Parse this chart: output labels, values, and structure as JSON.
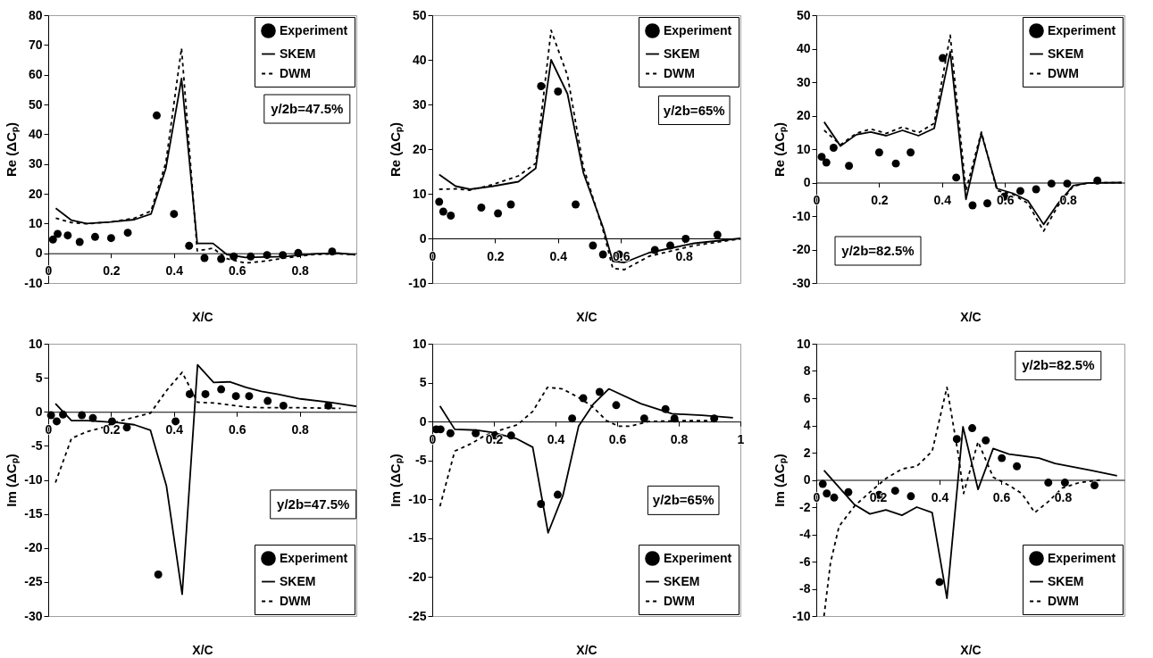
{
  "chart_data": [
    {
      "type": "line",
      "xlabel": "X/C",
      "ylabel": "Re (ΔCₚ)",
      "annotations": [
        "y/2b=47.5%"
      ],
      "xlim": [
        0,
        0.98
      ],
      "xticks": [
        0,
        0.2,
        0.4,
        0.6,
        0.8
      ],
      "ylim": [
        -10,
        80
      ],
      "yticks": [
        -10,
        0,
        10,
        20,
        30,
        40,
        50,
        60,
        70,
        80
      ],
      "legend": "top right",
      "series": [
        {
          "name": "Experiment",
          "type": "scatter",
          "marker": "circle",
          "color": "#000000",
          "x": [
            0.015,
            0.03,
            0.062,
            0.1,
            0.149,
            0.2,
            0.253,
            0.345,
            0.4,
            0.448,
            0.497,
            0.55,
            0.59,
            0.644,
            0.696,
            0.746,
            0.795,
            0.903
          ],
          "values": [
            4.6,
            6.5,
            6.0,
            3.8,
            5.5,
            5.1,
            6.9,
            46.3,
            13.2,
            2.5,
            -1.6,
            -1.9,
            -1.1,
            -1.1,
            -0.6,
            -0.6,
            0.1,
            0.6
          ]
        },
        {
          "name": "SKEM",
          "type": "line",
          "line_style": "solid",
          "color": "#000000",
          "x": [
            0.024,
            0.074,
            0.122,
            0.198,
            0.274,
            0.327,
            0.374,
            0.424,
            0.474,
            0.524,
            0.568,
            0.627,
            0.75,
            0.846,
            0.922,
            0.976
          ],
          "values": [
            15.1,
            11.1,
            10.0,
            10.5,
            11.3,
            13.2,
            28.5,
            58.7,
            3.3,
            3.3,
            -0.4,
            -1.4,
            -1.1,
            -0.2,
            0.1,
            -0.5
          ]
        },
        {
          "name": "DWM",
          "type": "line",
          "line_style": "dashed",
          "color": "#000000",
          "x": [
            0.024,
            0.074,
            0.122,
            0.198,
            0.274,
            0.327,
            0.374,
            0.424,
            0.474,
            0.524,
            0.568,
            0.627,
            0.693,
            0.75,
            0.846,
            0.922,
            0.976
          ],
          "values": [
            11.8,
            10.3,
            9.9,
            10.5,
            11.8,
            14.2,
            30.4,
            68.9,
            0.8,
            1.7,
            -1.8,
            -3.3,
            -2.6,
            -1.6,
            -0.4,
            -0.2,
            -0.5
          ]
        }
      ]
    },
    {
      "type": "line",
      "xlabel": "X/C",
      "ylabel": "Re (ΔCₚ)",
      "annotations": [
        "y/2b=65%"
      ],
      "xlim": [
        0,
        0.98
      ],
      "xticks": [
        0,
        0.2,
        0.4,
        0.6,
        0.8
      ],
      "ylim": [
        -10,
        50
      ],
      "yticks": [
        -10,
        0,
        10,
        20,
        30,
        40,
        50
      ],
      "legend": "top right",
      "series": [
        {
          "name": "Experiment",
          "type": "scatter",
          "marker": "circle",
          "color": "#000000",
          "x": [
            0.022,
            0.035,
            0.059,
            0.156,
            0.209,
            0.25,
            0.346,
            0.4,
            0.456,
            0.511,
            0.543,
            0.594,
            0.708,
            0.757,
            0.806,
            0.907
          ],
          "values": [
            8.2,
            6.0,
            5.1,
            6.9,
            5.6,
            7.6,
            34.1,
            32.9,
            7.6,
            -1.6,
            -3.6,
            -3.6,
            -2.6,
            -1.6,
            -0.1,
            0.8
          ]
        },
        {
          "name": "SKEM",
          "type": "line",
          "line_style": "solid",
          "color": "#000000",
          "x": [
            0.022,
            0.074,
            0.12,
            0.194,
            0.274,
            0.329,
            0.378,
            0.43,
            0.481,
            0.543,
            0.574,
            0.611,
            0.69,
            0.833,
            0.98
          ],
          "values": [
            14.3,
            11.7,
            11.0,
            11.7,
            12.7,
            15.7,
            40.0,
            32.4,
            14.6,
            2.5,
            -5.1,
            -5.4,
            -3.2,
            -1.1,
            0
          ]
        },
        {
          "name": "DWM",
          "type": "line",
          "line_style": "dashed",
          "color": "#000000",
          "x": [
            0.022,
            0.074,
            0.12,
            0.194,
            0.274,
            0.329,
            0.378,
            0.43,
            0.481,
            0.543,
            0.574,
            0.611,
            0.69,
            0.833,
            0.98
          ],
          "values": [
            11.0,
            11.1,
            10.8,
            12.1,
            14.0,
            16.8,
            46.6,
            36.5,
            15.9,
            1.9,
            -6.7,
            -7.0,
            -4.0,
            -1.6,
            -0.1
          ]
        }
      ]
    },
    {
      "type": "line",
      "xlabel": "X/C",
      "ylabel": "Re (ΔCₚ)",
      "annotations": [
        "y/2b=82.5%"
      ],
      "xlim": [
        0,
        0.98
      ],
      "xticks": [
        0,
        0.2,
        0.4,
        0.6,
        0.8
      ],
      "ylim": [
        -30,
        50
      ],
      "yticks": [
        -30,
        -20,
        -10,
        0,
        10,
        20,
        30,
        40,
        50
      ],
      "legend": "top right",
      "series": [
        {
          "name": "Experiment",
          "type": "scatter",
          "marker": "circle",
          "color": "#000000",
          "x": [
            0.017,
            0.032,
            0.055,
            0.104,
            0.2,
            0.253,
            0.3,
            0.402,
            0.445,
            0.497,
            0.544,
            0.598,
            0.649,
            0.699,
            0.748,
            0.798,
            0.894
          ],
          "values": [
            7.7,
            6.0,
            10.4,
            5.0,
            9.0,
            5.7,
            9.0,
            37.2,
            1.5,
            -6.8,
            -6.2,
            -4.2,
            -2.5,
            -2.0,
            -0.3,
            -0.3,
            0.6
          ]
        },
        {
          "name": "SKEM",
          "type": "line",
          "line_style": "solid",
          "color": "#000000",
          "x": [
            0.025,
            0.077,
            0.127,
            0.173,
            0.223,
            0.274,
            0.325,
            0.375,
            0.426,
            0.476,
            0.525,
            0.575,
            0.625,
            0.673,
            0.723,
            0.769,
            0.817,
            0.865,
            0.971
          ],
          "values": [
            18.1,
            10.9,
            14.3,
            15.1,
            14.0,
            15.6,
            14.0,
            16.2,
            39.1,
            -5.0,
            14.7,
            -1.8,
            -3.2,
            -5.4,
            -12.5,
            -6.2,
            -0.9,
            -0.1,
            0
          ]
        },
        {
          "name": "DWM",
          "type": "line",
          "line_style": "dashed",
          "color": "#000000",
          "x": [
            0.025,
            0.077,
            0.127,
            0.173,
            0.223,
            0.274,
            0.325,
            0.375,
            0.426,
            0.476,
            0.525,
            0.575,
            0.625,
            0.673,
            0.723,
            0.769,
            0.817,
            0.865,
            0.971
          ],
          "values": [
            15.6,
            11.3,
            14.7,
            16.0,
            14.7,
            16.6,
            14.9,
            17.7,
            44.0,
            -2.4,
            15.1,
            -2.4,
            -3.5,
            -6.2,
            -14.5,
            -6.9,
            -1.1,
            -0.1,
            0
          ]
        }
      ]
    },
    {
      "type": "line",
      "xlabel": "X/C",
      "ylabel": "Im (ΔCₚ)",
      "annotations": [
        "y/2b=47.5%"
      ],
      "xlim": [
        0,
        0.98
      ],
      "xticks": [
        0,
        0.2,
        0.4,
        0.6,
        0.8
      ],
      "ylim": [
        -30,
        10
      ],
      "yticks": [
        -30,
        -25,
        -20,
        -15,
        -10,
        -5,
        0,
        5,
        10
      ],
      "legend": "bottom right",
      "series": [
        {
          "name": "Experiment",
          "type": "scatter",
          "marker": "circle",
          "color": "#000000",
          "x": [
            0.009,
            0.027,
            0.047,
            0.107,
            0.142,
            0.203,
            0.25,
            0.35,
            0.405,
            0.45,
            0.5,
            0.55,
            0.597,
            0.639,
            0.698,
            0.748,
            0.891
          ],
          "values": [
            -0.5,
            -1.4,
            -0.4,
            -0.5,
            -0.9,
            -1.4,
            -2.3,
            -23.9,
            -1.4,
            2.6,
            2.6,
            3.3,
            2.3,
            2.3,
            1.6,
            0.9,
            0.9
          ]
        },
        {
          "name": "SKEM",
          "type": "line",
          "line_style": "solid",
          "color": "#000000",
          "x": [
            0.023,
            0.074,
            0.124,
            0.223,
            0.274,
            0.325,
            0.376,
            0.426,
            0.475,
            0.526,
            0.577,
            0.629,
            0.678,
            0.728,
            0.802,
            0.896,
            0.98
          ],
          "values": [
            1.2,
            -1.3,
            -1.3,
            -1.6,
            -1.9,
            -2.7,
            -10.9,
            -26.8,
            6.9,
            4.3,
            4.4,
            3.6,
            3.0,
            2.6,
            1.9,
            1.4,
            0.8
          ]
        },
        {
          "name": "DWM",
          "type": "line",
          "line_style": "dashed",
          "color": "#000000",
          "x": [
            0.023,
            0.074,
            0.124,
            0.173,
            0.223,
            0.274,
            0.325,
            0.376,
            0.426,
            0.475,
            0.526,
            0.577,
            0.629,
            0.678,
            0.802,
            0.93
          ],
          "values": [
            -10.4,
            -3.9,
            -2.9,
            -2.3,
            -1.4,
            -0.8,
            -0.2,
            3.1,
            5.8,
            1.4,
            1.3,
            1.0,
            0.7,
            0.6,
            0.6,
            0.5
          ]
        }
      ]
    },
    {
      "type": "line",
      "xlabel": "X/C",
      "ylabel": "Im (ΔCₚ)",
      "annotations": [
        "y/2b=65%"
      ],
      "xlim": [
        0,
        1
      ],
      "xticks": [
        0,
        0.2,
        0.4,
        0.6,
        0.8,
        1
      ],
      "ylim": [
        -25,
        10
      ],
      "yticks": [
        -25,
        -20,
        -15,
        -10,
        -5,
        0,
        5,
        10
      ],
      "legend": "bottom right",
      "series": [
        {
          "name": "Experiment",
          "type": "scatter",
          "marker": "circle",
          "color": "#000000",
          "x": [
            0.013,
            0.027,
            0.059,
            0.141,
            0.203,
            0.256,
            0.353,
            0.407,
            0.454,
            0.49,
            0.543,
            0.597,
            0.688,
            0.757,
            0.786,
            0.915
          ],
          "values": [
            -1.0,
            -1.0,
            -1.5,
            -1.5,
            -1.8,
            -1.8,
            -10.6,
            -9.4,
            0.4,
            3.0,
            3.8,
            2.1,
            0.4,
            1.6,
            0.4,
            0.4
          ]
        },
        {
          "name": "SKEM",
          "type": "line",
          "line_style": "solid",
          "color": "#000000",
          "x": [
            0.025,
            0.073,
            0.141,
            0.196,
            0.273,
            0.326,
            0.376,
            0.424,
            0.475,
            0.524,
            0.573,
            0.677,
            0.778,
            0.875,
            0.976
          ],
          "values": [
            2.0,
            -1.0,
            -1.1,
            -1.4,
            -2.2,
            -3.3,
            -14.3,
            -9.5,
            -0.6,
            2.3,
            4.2,
            2.3,
            1.0,
            0.8,
            0.5
          ]
        },
        {
          "name": "DWM",
          "type": "line",
          "line_style": "dashed",
          "color": "#000000",
          "x": [
            0.025,
            0.073,
            0.123,
            0.171,
            0.229,
            0.277,
            0.326,
            0.374,
            0.422,
            0.47,
            0.518,
            0.566,
            0.605,
            0.644,
            0.701,
            0.797,
            0.913
          ],
          "values": [
            -10.9,
            -3.8,
            -2.9,
            -1.8,
            -1.0,
            -0.4,
            1.3,
            4.4,
            4.2,
            3.2,
            2.0,
            0.1,
            -0.6,
            -0.6,
            0,
            0.1,
            0.1
          ]
        }
      ]
    },
    {
      "type": "line",
      "xlabel": "X/C",
      "ylabel": "Im (ΔCₚ)",
      "annotations": [
        "y/2b=82.5%"
      ],
      "xlim": [
        0,
        1
      ],
      "xticks": [
        0,
        0.2,
        0.4,
        0.6,
        0.8
      ],
      "ylim": [
        -10,
        10
      ],
      "yticks": [
        -10,
        -8,
        -6,
        -4,
        -2,
        0,
        2,
        4,
        6,
        8,
        10
      ],
      "legend": "bottom right",
      "series": [
        {
          "name": "Experiment",
          "type": "scatter",
          "marker": "circle",
          "color": "#000000",
          "x": [
            0.021,
            0.034,
            0.058,
            0.104,
            0.204,
            0.256,
            0.307,
            0.4,
            0.456,
            0.506,
            0.55,
            0.602,
            0.651,
            0.753,
            0.807,
            0.903
          ],
          "values": [
            -0.3,
            -1.0,
            -1.3,
            -0.9,
            -1.1,
            -0.8,
            -1.2,
            -7.5,
            3.0,
            3.8,
            2.9,
            1.6,
            1.0,
            -0.2,
            -0.2,
            -0.4
          ]
        },
        {
          "name": "SKEM",
          "type": "line",
          "line_style": "solid",
          "color": "#000000",
          "x": [
            0.025,
            0.123,
            0.174,
            0.226,
            0.278,
            0.326,
            0.376,
            0.424,
            0.476,
            0.525,
            0.574,
            0.625,
            0.723,
            0.775,
            0.892,
            0.976
          ],
          "values": [
            0.7,
            -1.8,
            -2.5,
            -2.2,
            -2.6,
            -2.0,
            -2.4,
            -8.7,
            3.9,
            -0.7,
            2.3,
            1.9,
            1.6,
            1.2,
            0.7,
            0.3
          ]
        },
        {
          "name": "DWM",
          "type": "line",
          "line_style": "dashed",
          "color": "#000000",
          "x": [
            0.025,
            0.046,
            0.074,
            0.125,
            0.174,
            0.226,
            0.278,
            0.326,
            0.376,
            0.424,
            0.462,
            0.478,
            0.525,
            0.574,
            0.625,
            0.667,
            0.709,
            0.753,
            0.798,
            0.854,
            0.924
          ],
          "values": [
            -10.0,
            -6.1,
            -3.4,
            -1.9,
            -0.9,
            0.1,
            0.8,
            1.0,
            2.1,
            6.8,
            1.7,
            -1.0,
            2.8,
            0.2,
            -0.4,
            -1.0,
            -2.4,
            -1.6,
            -0.6,
            -0.2,
            0.0
          ]
        }
      ]
    }
  ]
}
